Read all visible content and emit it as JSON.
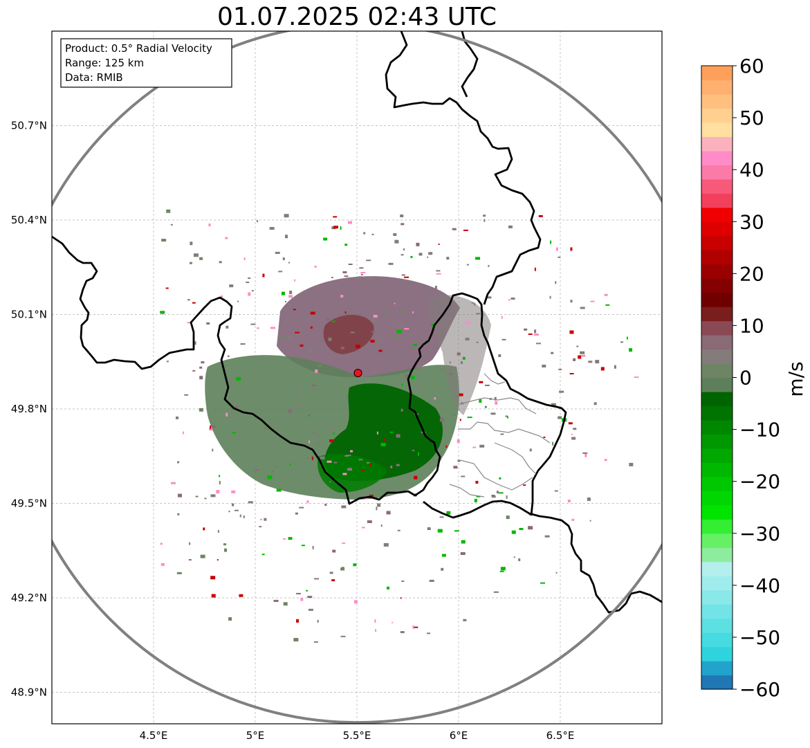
{
  "title": "01.07.2025 02:43 UTC",
  "info_box": {
    "product": "Product: 0.5° Radial Velocity",
    "range": "Range: 125 km",
    "data": "Data: RMIB"
  },
  "map": {
    "lon_range": [
      4.0,
      7.0
    ],
    "lat_range": [
      48.8,
      51.0
    ],
    "x_ticks": [
      {
        "value": 4.5,
        "label": "4.5°E"
      },
      {
        "value": 5.0,
        "label": "5°E"
      },
      {
        "value": 5.5,
        "label": "5.5°E"
      },
      {
        "value": 6.0,
        "label": "6°E"
      },
      {
        "value": 6.5,
        "label": "6.5°E"
      }
    ],
    "y_ticks": [
      {
        "value": 50.7,
        "label": "50.7°N"
      },
      {
        "value": 50.4,
        "label": "50.4°N"
      },
      {
        "value": 50.1,
        "label": "50.1°N"
      },
      {
        "value": 49.8,
        "label": "49.8°N"
      },
      {
        "value": 49.5,
        "label": "49.5°N"
      },
      {
        "value": 49.2,
        "label": "49.2°N"
      },
      {
        "value": 48.9,
        "label": "48.9°N"
      }
    ],
    "radar_site": {
      "lon": 5.505,
      "lat": 49.914
    },
    "range_ring_color": "#808080",
    "radar_color": "#e8141e"
  },
  "colorbar": {
    "label": "m/s",
    "min": -60,
    "max": 60,
    "ticks": [
      {
        "value": 60,
        "label": "60"
      },
      {
        "value": 50,
        "label": "50"
      },
      {
        "value": 40,
        "label": "40"
      },
      {
        "value": 30,
        "label": "30"
      },
      {
        "value": 20,
        "label": "20"
      },
      {
        "value": 10,
        "label": "10"
      },
      {
        "value": 0,
        "label": "0"
      },
      {
        "value": -10,
        "label": "−10"
      },
      {
        "value": -20,
        "label": "−20"
      },
      {
        "value": -30,
        "label": "−30"
      },
      {
        "value": -40,
        "label": "−40"
      },
      {
        "value": -50,
        "label": "−50"
      },
      {
        "value": -60,
        "label": "−60"
      }
    ],
    "colors": [
      "#1f77b4",
      "#22a3cc",
      "#2fd3dd",
      "#45dbe0",
      "#5ce0e2",
      "#72e3e6",
      "#8ae8e8",
      "#a0ecec",
      "#b4efee",
      "#8eec9e",
      "#66f066",
      "#33ee33",
      "#00e400",
      "#00d700",
      "#00c800",
      "#00b800",
      "#00a800",
      "#009800",
      "#008700",
      "#007400",
      "#006400",
      "#5d805a",
      "#6e8565",
      "#847b7b",
      "#8a6a75",
      "#8a4a55",
      "#7a1d1d",
      "#700000",
      "#850000",
      "#9a0000",
      "#b00000",
      "#c80000",
      "#de0000",
      "#f00000",
      "#f2405c",
      "#f75a78",
      "#fc7aa8",
      "#ff8cc8",
      "#fcb2be",
      "#ffe0a0",
      "#ffd090",
      "#ffc07f",
      "#ffb070",
      "#ffa05a"
    ]
  },
  "colors": {
    "border_color": "#000000",
    "internal_border_color": "#888888",
    "inbound_green": "#006400",
    "outbound_red": "#7a1d1d",
    "near_zero_gray": "#7d8a7a"
  }
}
